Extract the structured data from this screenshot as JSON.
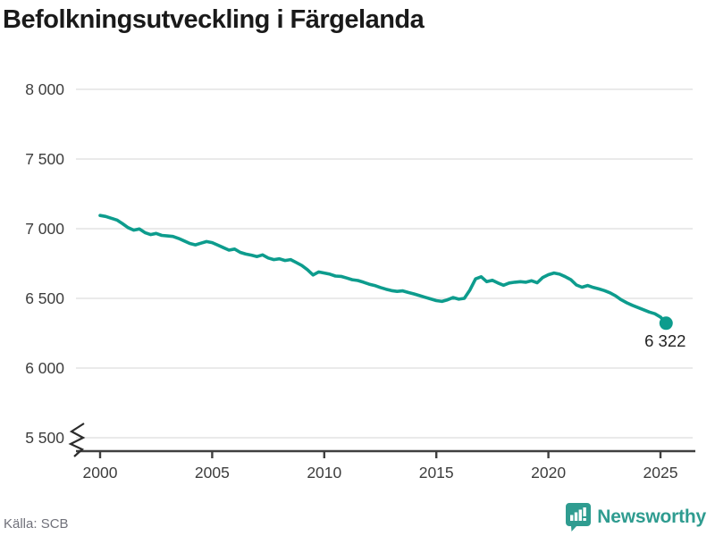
{
  "title": "Befolkningsutveckling i Färgelanda",
  "footer": {
    "source_label": "Källa: SCB",
    "brand_name": "Newsworthy"
  },
  "colors": {
    "line": "#0d9c8d",
    "dot": "#0d9c8d",
    "brand_teal": "#2f9c90",
    "grid": "#e3e3e3",
    "axis": "#3f3f3f",
    "tick_text": "#3d3d3d",
    "title_text": "#1a1a1a",
    "muted_text": "#70717a",
    "end_label_text": "#222222"
  },
  "chart_data": {
    "type": "line",
    "title": "Befolkningsutveckling i Färgelanda",
    "series_name": "Befolkning",
    "source": "SCB",
    "grid": "horizontal gridlines only",
    "legend_position": "none",
    "axis_break_bottom_left": true,
    "start_year": 2000,
    "interval_years": 0.25,
    "xlim": [
      1998.9,
      2026.5
    ],
    "ylim": [
      5500,
      8000
    ],
    "xticks": [
      2000,
      2005,
      2010,
      2015,
      2020,
      2025
    ],
    "yticks": [
      {
        "value": 5500,
        "label": "5 500"
      },
      {
        "value": 6000,
        "label": "6 000"
      },
      {
        "value": 6500,
        "label": "6 500"
      },
      {
        "value": 7000,
        "label": "7 000"
      },
      {
        "value": 7500,
        "label": "7 500"
      },
      {
        "value": 8000,
        "label": "8 000"
      }
    ],
    "values": [
      7095,
      7088,
      7075,
      7062,
      7036,
      7008,
      6990,
      6998,
      6972,
      6958,
      6966,
      6952,
      6948,
      6944,
      6930,
      6912,
      6894,
      6884,
      6896,
      6908,
      6900,
      6882,
      6864,
      6846,
      6854,
      6830,
      6818,
      6810,
      6800,
      6812,
      6790,
      6778,
      6784,
      6772,
      6778,
      6758,
      6736,
      6706,
      6668,
      6690,
      6682,
      6674,
      6660,
      6658,
      6646,
      6634,
      6628,
      6616,
      6602,
      6592,
      6578,
      6566,
      6556,
      6550,
      6554,
      6542,
      6532,
      6520,
      6508,
      6496,
      6484,
      6478,
      6490,
      6506,
      6494,
      6500,
      6560,
      6640,
      6655,
      6620,
      6630,
      6610,
      6594,
      6610,
      6616,
      6620,
      6616,
      6626,
      6612,
      6650,
      6670,
      6682,
      6674,
      6656,
      6634,
      6596,
      6580,
      6592,
      6578,
      6568,
      6556,
      6540,
      6518,
      6490,
      6468,
      6450,
      6434,
      6418,
      6402,
      6390,
      6366,
      6322
    ],
    "end_value": 6322,
    "end_label": "6 322"
  }
}
